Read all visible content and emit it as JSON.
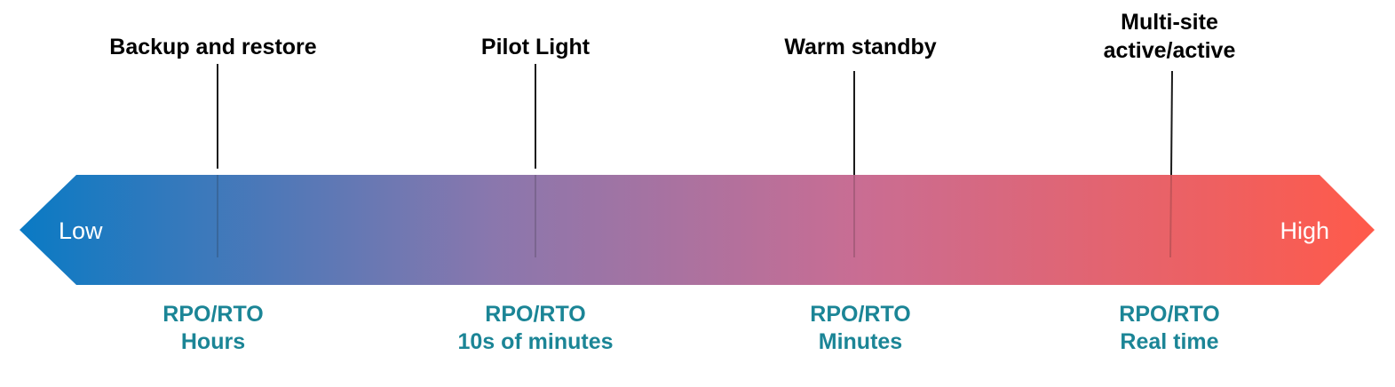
{
  "scale": {
    "low_label": "Low",
    "high_label": "High",
    "gradient_colors": [
      "#0a7ac4",
      "#8a77ad",
      "#c96d93",
      "#ff5a4a"
    ]
  },
  "strategies": [
    {
      "name": "Backup and restore",
      "rpo_label": "RPO/RTO",
      "rpo_value": "Hours"
    },
    {
      "name": "Pilot Light",
      "rpo_label": "RPO/RTO",
      "rpo_value": "10s of minutes"
    },
    {
      "name": "Warm standby",
      "rpo_label": "RPO/RTO",
      "rpo_value": "Minutes"
    },
    {
      "name_line1": "Multi-site",
      "name_line2": "active/active",
      "rpo_label": "RPO/RTO",
      "rpo_value": "Real time"
    }
  ],
  "colors": {
    "rpo_text": "#1b8596",
    "marker_line": "#1a1a1a",
    "title_text": "#000000"
  }
}
